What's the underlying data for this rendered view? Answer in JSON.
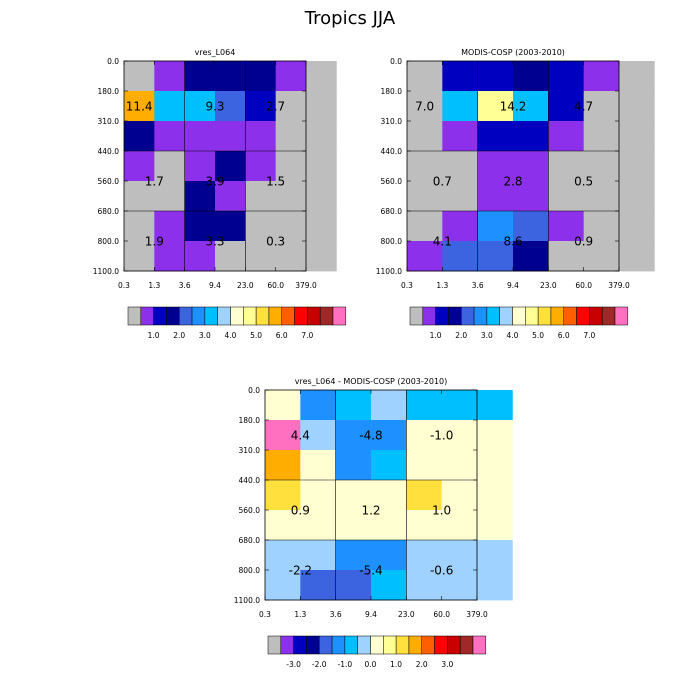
{
  "title": "Tropics JJA",
  "colors": {
    "gray": "#bebebe",
    "levels": [
      "#8c30eb",
      "#0000c0",
      "#000090",
      "#3c64e1",
      "#1e90ff",
      "#00bfff",
      "#a0d2ff",
      "#ffffd2",
      "#ffff96",
      "#ffe03c",
      "#ffad00",
      "#ff5f00",
      "#ff0000",
      "#c80000",
      "#a02828",
      "#ff70c0"
    ]
  },
  "chart_data": [
    {
      "type": "heatmap",
      "name": "model",
      "title": "vres_L064",
      "xlabel": "",
      "ylabel": "",
      "x_edges": [
        "0.3",
        "1.3",
        "3.6",
        "9.4",
        "23.0",
        "60.0",
        "379.0"
      ],
      "y_edges": [
        "0.0",
        "180.0",
        "310.0",
        "440.0",
        "560.0",
        "680.0",
        "800.0",
        "1100.0"
      ],
      "cells": [
        [
          -1,
          0,
          2,
          2,
          2,
          0,
          -1
        ],
        [
          10,
          5,
          5,
          3,
          1,
          -1,
          -1
        ],
        [
          2,
          0,
          0,
          0,
          0,
          -1,
          -1
        ],
        [
          0,
          -1,
          0,
          2,
          0,
          -1,
          -1
        ],
        [
          -1,
          -1,
          2,
          0,
          -1,
          -1,
          -1
        ],
        [
          -1,
          0,
          2,
          2,
          -1,
          -1,
          -1
        ],
        [
          -1,
          0,
          0,
          -1,
          -1,
          -1,
          -1
        ]
      ],
      "labels": [
        {
          "text": "11.4",
          "col": 0.5,
          "row": 1.5
        },
        {
          "text": "9.3",
          "col": 3,
          "row": 1.5
        },
        {
          "text": "2.7",
          "col": 5,
          "row": 1.5
        },
        {
          "text": "1.7",
          "col": 1,
          "row": 4
        },
        {
          "text": "3.9",
          "col": 3,
          "row": 4
        },
        {
          "text": "1.5",
          "col": 5,
          "row": 4
        },
        {
          "text": "1.9",
          "col": 1,
          "row": 6
        },
        {
          "text": "3.3",
          "col": 3,
          "row": 6
        },
        {
          "text": "0.3",
          "col": 5,
          "row": 6
        }
      ],
      "colorbar": {
        "ticks": [
          "1.0",
          "2.0",
          "3.0",
          "4.0",
          "5.0",
          "6.0",
          "7.0"
        ]
      }
    },
    {
      "type": "heatmap",
      "name": "obs",
      "title": "MODIS-COSP (2003-2010)",
      "xlabel": "",
      "ylabel": "",
      "x_edges": [
        "0.3",
        "1.3",
        "3.6",
        "9.4",
        "23.0",
        "60.0",
        "379.0"
      ],
      "y_edges": [
        "0.0",
        "180.0",
        "310.0",
        "440.0",
        "560.0",
        "680.0",
        "800.0",
        "1100.0"
      ],
      "cells": [
        [
          -1,
          1,
          1,
          2,
          1,
          0,
          -1
        ],
        [
          -1,
          5,
          8,
          5,
          1,
          -1,
          -1
        ],
        [
          -1,
          0,
          1,
          1,
          0,
          -1,
          -1
        ],
        [
          -1,
          -1,
          0,
          0,
          -1,
          -1,
          -1
        ],
        [
          -1,
          -1,
          0,
          0,
          -1,
          -1,
          -1
        ],
        [
          -1,
          0,
          4,
          3,
          0,
          -1,
          -1
        ],
        [
          0,
          3,
          3,
          2,
          -1,
          -1,
          -1
        ]
      ],
      "labels": [
        {
          "text": "7.0",
          "col": 0.5,
          "row": 1.5
        },
        {
          "text": "14.2",
          "col": 3,
          "row": 1.5
        },
        {
          "text": "4.7",
          "col": 5,
          "row": 1.5
        },
        {
          "text": "0.7",
          "col": 1,
          "row": 4
        },
        {
          "text": "2.8",
          "col": 3,
          "row": 4
        },
        {
          "text": "0.5",
          "col": 5,
          "row": 4
        },
        {
          "text": "4.1",
          "col": 1,
          "row": 6
        },
        {
          "text": "8.6",
          "col": 3,
          "row": 6
        },
        {
          "text": "0.9",
          "col": 5,
          "row": 6
        }
      ],
      "colorbar": {
        "ticks": [
          "1.0",
          "2.0",
          "3.0",
          "4.0",
          "5.0",
          "6.0",
          "7.0"
        ]
      }
    },
    {
      "type": "heatmap",
      "name": "diff",
      "title": "vres_L064 - MODIS-COSP (2003-2010)",
      "xlabel": "",
      "ylabel": "",
      "x_edges": [
        "0.3",
        "1.3",
        "3.6",
        "9.4",
        "23.0",
        "60.0",
        "379.0"
      ],
      "y_edges": [
        "0.0",
        "180.0",
        "310.0",
        "440.0",
        "560.0",
        "680.0",
        "800.0",
        "1100.0"
      ],
      "cells": [
        [
          7,
          4,
          5,
          6,
          5,
          5,
          5
        ],
        [
          15,
          6,
          4,
          4,
          7,
          7,
          7
        ],
        [
          10,
          7,
          4,
          5,
          7,
          7,
          7
        ],
        [
          9,
          7,
          7,
          7,
          9,
          7,
          7
        ],
        [
          7,
          7,
          7,
          7,
          7,
          7,
          7
        ],
        [
          6,
          6,
          4,
          4,
          6,
          6,
          6
        ],
        [
          6,
          3,
          3,
          5,
          6,
          6,
          6
        ]
      ],
      "labels": [
        {
          "text": "4.4",
          "col": 1,
          "row": 1.5
        },
        {
          "text": "-4.8",
          "col": 3,
          "row": 1.5
        },
        {
          "text": "-1.0",
          "col": 5,
          "row": 1.5
        },
        {
          "text": "0.9",
          "col": 1,
          "row": 4
        },
        {
          "text": "1.2",
          "col": 3,
          "row": 4
        },
        {
          "text": "1.0",
          "col": 5,
          "row": 4
        },
        {
          "text": "-2.2",
          "col": 1,
          "row": 6
        },
        {
          "text": "-5.4",
          "col": 3,
          "row": 6
        },
        {
          "text": "-0.6",
          "col": 5,
          "row": 6
        }
      ],
      "colorbar": {
        "ticks": [
          "-3.0",
          "-2.0",
          "-1.0",
          "0.0",
          "1.0",
          "2.0",
          "3.0"
        ]
      }
    }
  ]
}
